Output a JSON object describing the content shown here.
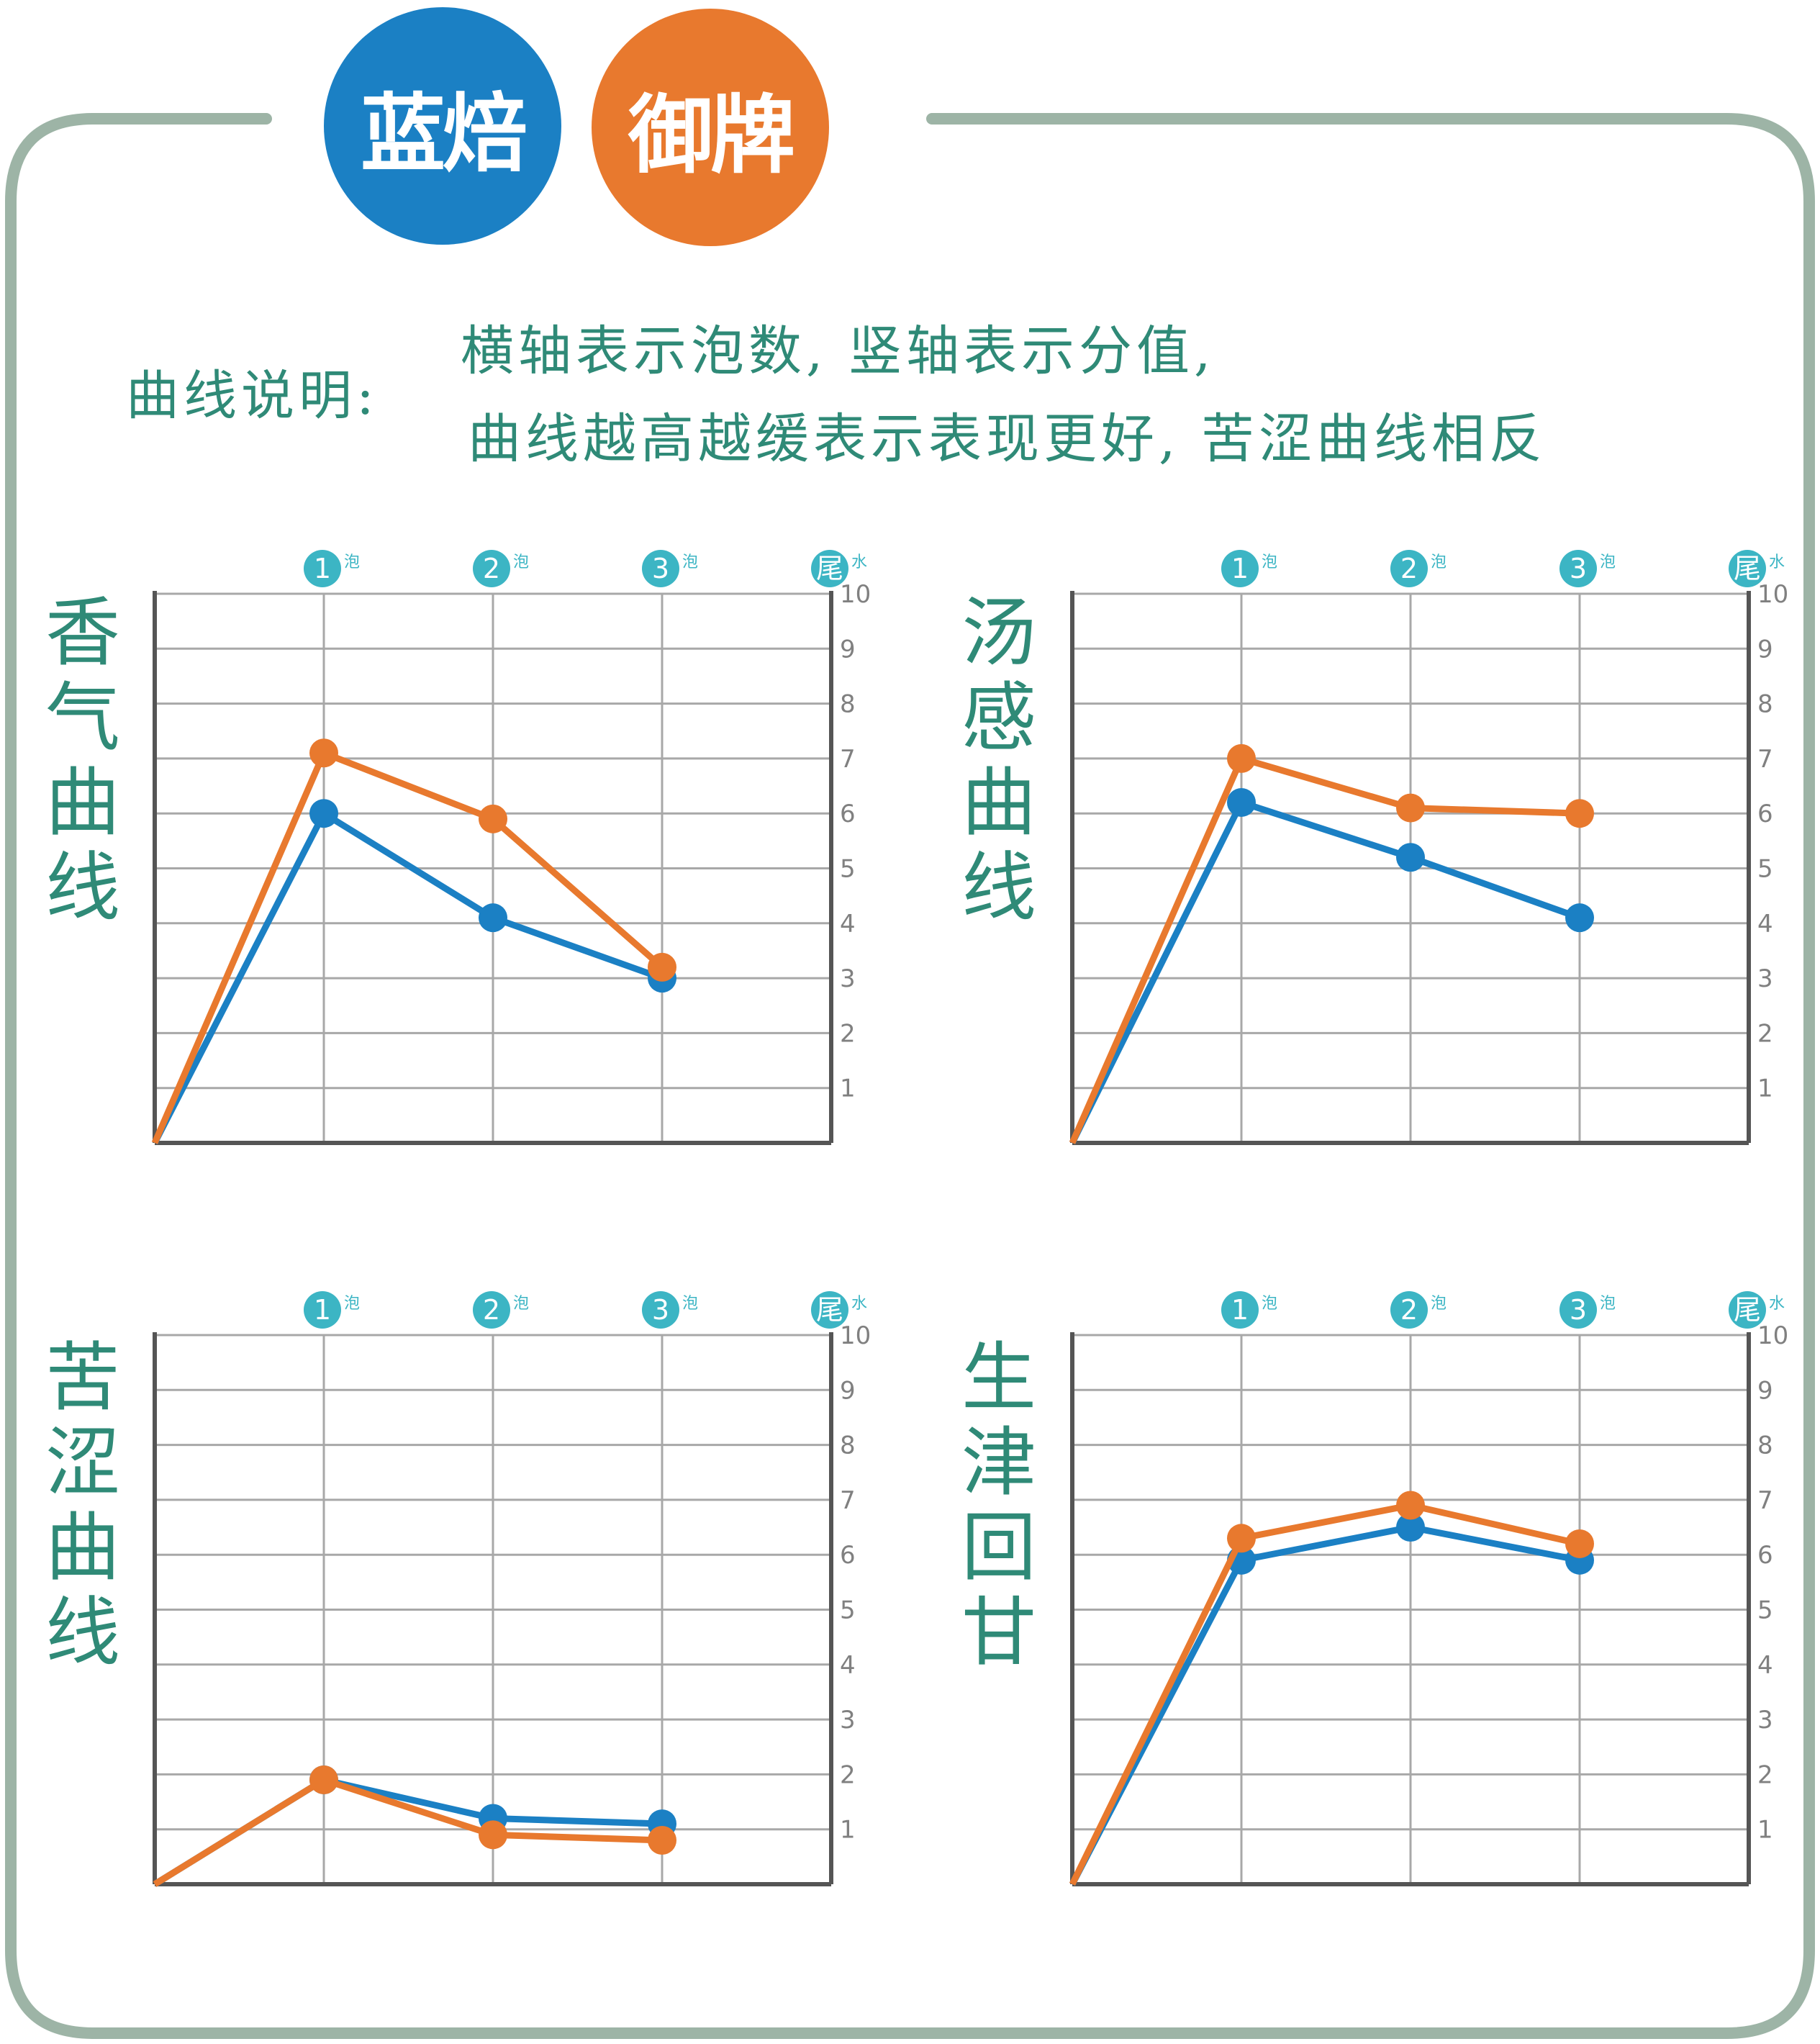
{
  "brand": {
    "blue_label": "蓝焙",
    "orange_label": "御牌",
    "blue_color": "#1b80c4",
    "orange_color": "#e8792e"
  },
  "legend_text": {
    "label": "曲线说明:",
    "line1": "横轴表示泡数, 竖轴表示分值,",
    "line2": "曲线越高越缓表示表现更好, 苦涩曲线相反"
  },
  "colors": {
    "frame": "#9db4a6",
    "title_text": "#2f8a77",
    "grid": "#a8a8a8",
    "axis": "#555555",
    "badge": "#3cb5c4",
    "tick_text": "#808080"
  },
  "chart_data": [
    {
      "type": "line",
      "title": "香气曲线",
      "x": [
        "0",
        "1",
        "2",
        "3"
      ],
      "x_top_labels": [
        {
          "num": "1",
          "sub": "泡"
        },
        {
          "num": "2",
          "sub": "泡"
        },
        {
          "num": "3",
          "sub": "泡"
        },
        {
          "num": "尾",
          "sub": "水"
        }
      ],
      "y_ticks": [
        "1",
        "2",
        "3",
        "4",
        "5",
        "6",
        "7",
        "8",
        "9",
        "10"
      ],
      "ylim": [
        0,
        10
      ],
      "grid": true,
      "series": [
        {
          "color": "#1b80c4",
          "values": [
            0,
            6.0,
            4.1,
            3.0
          ]
        },
        {
          "color": "#e8792e",
          "values": [
            0,
            7.1,
            5.9,
            3.2
          ]
        }
      ]
    },
    {
      "type": "line",
      "title": "汤感曲线",
      "x": [
        "0",
        "1",
        "2",
        "3"
      ],
      "x_top_labels": [
        {
          "num": "1",
          "sub": "泡"
        },
        {
          "num": "2",
          "sub": "泡"
        },
        {
          "num": "3",
          "sub": "泡"
        },
        {
          "num": "尾",
          "sub": "水"
        }
      ],
      "y_ticks": [
        "1",
        "2",
        "3",
        "4",
        "5",
        "6",
        "7",
        "8",
        "9",
        "10"
      ],
      "ylim": [
        0,
        10
      ],
      "grid": true,
      "series": [
        {
          "color": "#1b80c4",
          "values": [
            0,
            6.2,
            5.2,
            4.1
          ]
        },
        {
          "color": "#e8792e",
          "values": [
            0,
            7.0,
            6.1,
            6.0
          ]
        }
      ]
    },
    {
      "type": "line",
      "title": "苦涩曲线",
      "x": [
        "0",
        "1",
        "2",
        "3"
      ],
      "x_top_labels": [
        {
          "num": "1",
          "sub": "泡"
        },
        {
          "num": "2",
          "sub": "泡"
        },
        {
          "num": "3",
          "sub": "泡"
        },
        {
          "num": "尾",
          "sub": "水"
        }
      ],
      "y_ticks": [
        "1",
        "2",
        "3",
        "4",
        "5",
        "6",
        "7",
        "8",
        "9",
        "10"
      ],
      "ylim": [
        0,
        10
      ],
      "grid": true,
      "series": [
        {
          "color": "#1b80c4",
          "values": [
            0,
            1.9,
            1.2,
            1.1
          ]
        },
        {
          "color": "#e8792e",
          "values": [
            0,
            1.9,
            0.9,
            0.8
          ]
        }
      ]
    },
    {
      "type": "line",
      "title": "生津回甘",
      "x": [
        "0",
        "1",
        "2",
        "3"
      ],
      "x_top_labels": [
        {
          "num": "1",
          "sub": "泡"
        },
        {
          "num": "2",
          "sub": "泡"
        },
        {
          "num": "3",
          "sub": "泡"
        },
        {
          "num": "尾",
          "sub": "水"
        }
      ],
      "y_ticks": [
        "1",
        "2",
        "3",
        "4",
        "5",
        "6",
        "7",
        "8",
        "9",
        "10"
      ],
      "ylim": [
        0,
        10
      ],
      "grid": true,
      "series": [
        {
          "color": "#1b80c4",
          "values": [
            0,
            5.9,
            6.5,
            5.9
          ]
        },
        {
          "color": "#e8792e",
          "values": [
            0,
            6.3,
            6.9,
            6.2
          ]
        }
      ]
    }
  ]
}
